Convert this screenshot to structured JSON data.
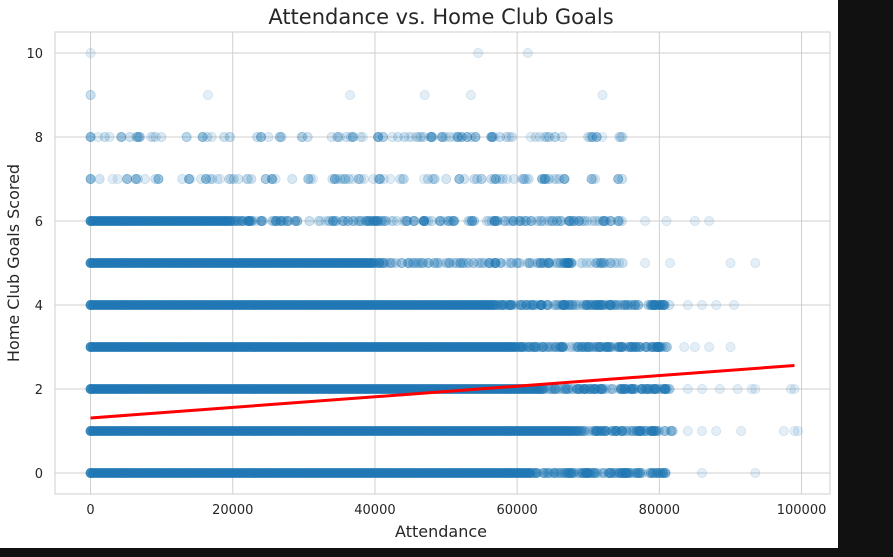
{
  "chart_data": {
    "type": "scatter",
    "title": "Attendance vs. Home Club Goals",
    "xlabel": "Attendance",
    "ylabel": "Home Club Goals Scored",
    "xlim": [
      -5000,
      104000
    ],
    "ylim": [
      -0.5,
      10.5
    ],
    "xticks": [
      0,
      20000,
      40000,
      60000,
      80000,
      100000
    ],
    "yticks": [
      0,
      2,
      4,
      6,
      8,
      10
    ],
    "grid": true,
    "point_color": "#1f77b4",
    "point_alpha": 0.12,
    "trend_color": "#ff0000",
    "trend_line": {
      "x": [
        0,
        99000
      ],
      "y": [
        1.31,
        2.56
      ]
    },
    "series": [
      {
        "bands": [
          {
            "y": 0,
            "dense_to": 62000,
            "sparse_to": 81000,
            "outliers": [
              86000,
              93500
            ]
          },
          {
            "y": 1,
            "dense_to": 68000,
            "sparse_to": 82000,
            "outliers": [
              84000,
              86000,
              88000,
              91500,
              97500,
              99000,
              99500
            ]
          },
          {
            "y": 2,
            "dense_to": 63000,
            "sparse_to": 81500,
            "outliers": [
              84000,
              86000,
              88500,
              91000,
              93000,
              93500,
              98500,
              99000
            ]
          },
          {
            "y": 3,
            "dense_to": 60000,
            "sparse_to": 81500,
            "outliers": [
              83500,
              85000,
              87000,
              90000
            ]
          },
          {
            "y": 4,
            "dense_to": 56000,
            "sparse_to": 81500,
            "outliers": [
              84000,
              86000,
              88000,
              90500
            ]
          },
          {
            "y": 5,
            "dense_to": 40000,
            "sparse_to": 75000,
            "outliers": [
              78000,
              81500,
              90000,
              93500
            ]
          },
          {
            "y": 6,
            "dense_to": 20000,
            "sparse_to": 75000,
            "outliers": [
              78000,
              81000,
              85000,
              87000
            ]
          },
          {
            "y": 7,
            "dense_to": 0,
            "sparse_to": 75000,
            "outliers": []
          },
          {
            "y": 8,
            "dense_to": 0,
            "sparse_to": 75000,
            "outliers": []
          },
          {
            "y": 9,
            "dense_to": 0,
            "sparse_to": 0,
            "outliers": [
              0,
              16500,
              36500,
              47000,
              53500,
              72000
            ]
          },
          {
            "y": 10,
            "dense_to": 0,
            "sparse_to": 0,
            "outliers": [
              54500,
              61500
            ]
          }
        ]
      }
    ]
  }
}
